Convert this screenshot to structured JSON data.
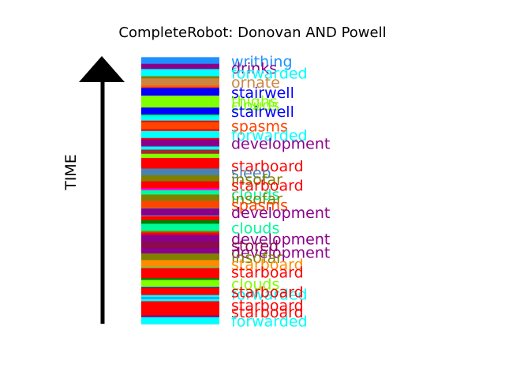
{
  "chart_data": {
    "type": "bar",
    "title": "CompleteRobot: Donovan AND Powell",
    "ylabel": "TIME",
    "xlabel": "",
    "orientation": "stacked-timeline",
    "stripe_colors": [
      "#00ffff",
      "#ff0000",
      "#ff5a00",
      "#7fff00",
      "#ff8040",
      "#ff0000",
      "#0000ff",
      "#00ffff",
      "#ff0000",
      "#808000",
      "#8b008b",
      "#ffa500",
      "#00ff80",
      "#008000",
      "#ff0000",
      "#a52a2a",
      "#800080",
      "#ffff00",
      "#ff00ff",
      "#1e90ff"
    ],
    "labels": [
      {
        "text": "writhing",
        "color": "#1e90ff",
        "y": 0.99
      },
      {
        "text": "drinks",
        "color": "#8b008b",
        "y": 0.965
      },
      {
        "text": "forwarded",
        "color": "#00ffff",
        "y": 0.945
      },
      {
        "text": "ornate",
        "color": "#cd853f",
        "y": 0.91
      },
      {
        "text": "stairwell",
        "color": "#0000ff",
        "y": 0.872
      },
      {
        "text": "thighs",
        "color": "#7fff00",
        "y": 0.84
      },
      {
        "text": "clouds",
        "color": "#7fff00",
        "y": 0.825
      },
      {
        "text": "stairwell",
        "color": "#0000ff",
        "y": 0.8
      },
      {
        "text": "spasms",
        "color": "#ff4500",
        "y": 0.745
      },
      {
        "text": "forwarded",
        "color": "#00ffff",
        "y": 0.712
      },
      {
        "text": "development",
        "color": "#8b008b",
        "y": 0.68
      },
      {
        "text": "starboard",
        "color": "#ff0000",
        "y": 0.595
      },
      {
        "text": "sleep",
        "color": "#4682b4",
        "y": 0.57
      },
      {
        "text": "insofar",
        "color": "#808000",
        "y": 0.545
      },
      {
        "text": "starboard",
        "color": "#ff0000",
        "y": 0.522
      },
      {
        "text": "clouds",
        "color": "#00fa9a",
        "y": 0.488
      },
      {
        "text": "insofar",
        "color": "#808000",
        "y": 0.472
      },
      {
        "text": "spasms",
        "color": "#ff4500",
        "y": 0.448
      },
      {
        "text": "development",
        "color": "#8b008b",
        "y": 0.42
      },
      {
        "text": "clouds",
        "color": "#00fa9a",
        "y": 0.362
      },
      {
        "text": "development",
        "color": "#8b008b",
        "y": 0.32
      },
      {
        "text": "stored",
        "color": "#8b0a50",
        "y": 0.295
      },
      {
        "text": "development",
        "color": "#8b008b",
        "y": 0.27
      },
      {
        "text": "insofar",
        "color": "#808000",
        "y": 0.25
      },
      {
        "text": "starboard",
        "color": "#ff8c00",
        "y": 0.225
      },
      {
        "text": "starboard",
        "color": "#ff0000",
        "y": 0.195
      },
      {
        "text": "clouds",
        "color": "#7fff00",
        "y": 0.15
      },
      {
        "text": "forwarded",
        "color": "#00ffff",
        "y": 0.112
      },
      {
        "text": "starboard",
        "color": "#ff0000",
        "y": 0.12
      },
      {
        "text": "starboard",
        "color": "#ff0000",
        "y": 0.07
      },
      {
        "text": "starboard",
        "color": "#ff0000",
        "y": 0.045
      },
      {
        "text": "forwarded",
        "color": "#00ffff",
        "y": 0.01
      }
    ]
  }
}
